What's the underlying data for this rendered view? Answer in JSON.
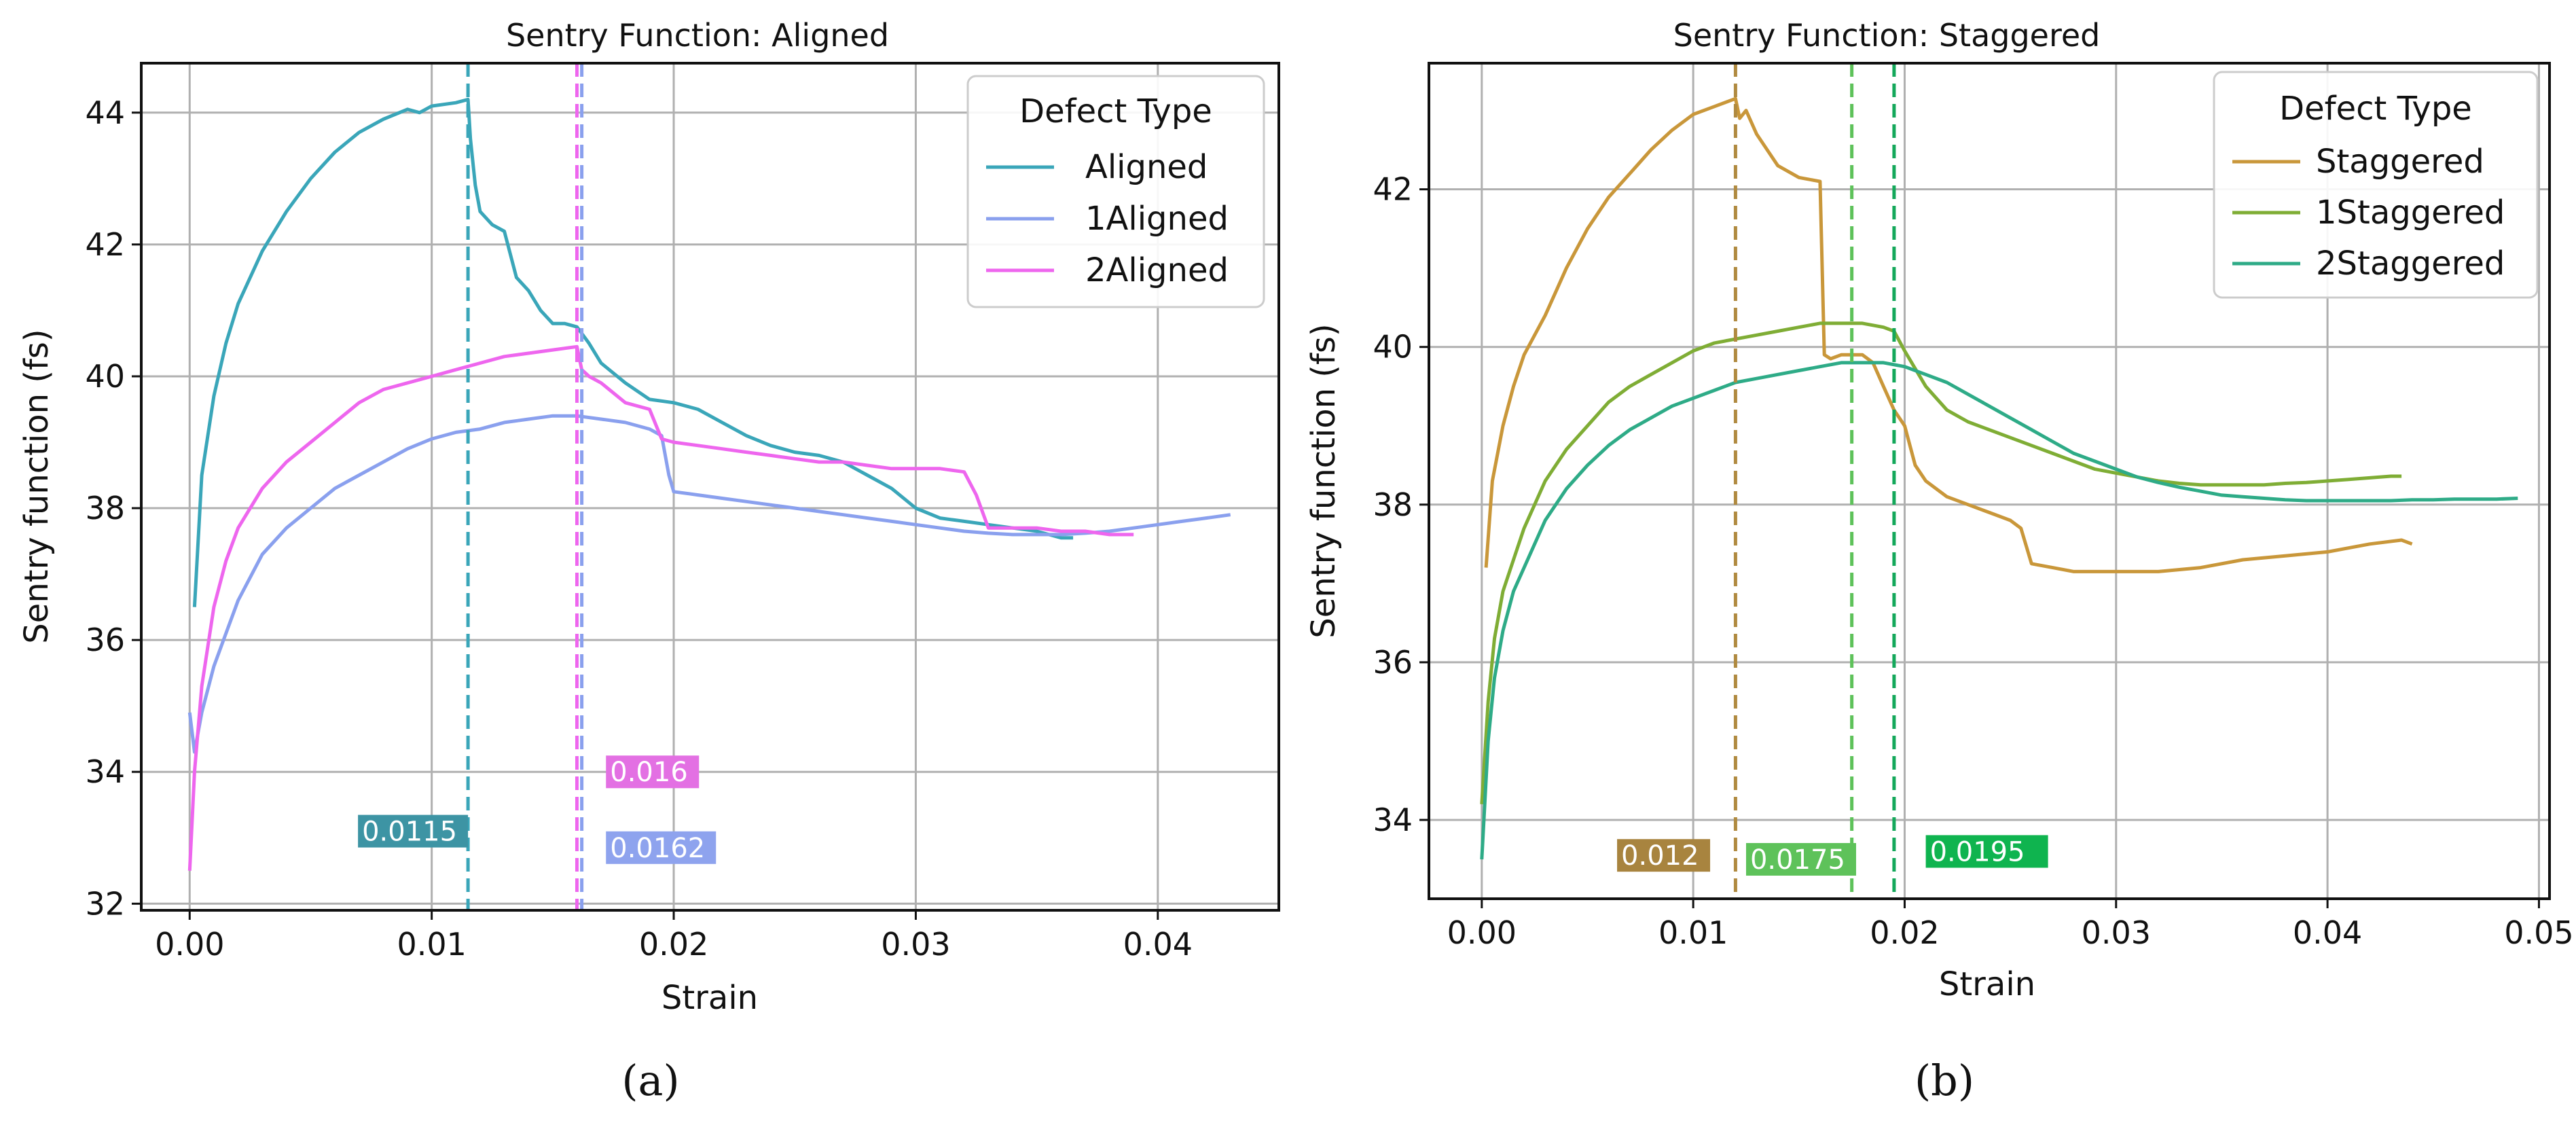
{
  "chart_data": [
    {
      "id": "a",
      "type": "line",
      "title": "Sentry Function: Aligned",
      "xlabel": "Strain",
      "ylabel": "Sentry function (fs)",
      "xlim": [
        -0.002,
        0.045
      ],
      "ylim": [
        31.9,
        44.75
      ],
      "xticks": [
        0.0,
        0.01,
        0.02,
        0.03,
        0.04
      ],
      "xtick_labels": [
        "0.00",
        "0.01",
        "0.02",
        "0.03",
        "0.04"
      ],
      "yticks": [
        32,
        34,
        36,
        38,
        40,
        42,
        44
      ],
      "ytick_labels": [
        "32",
        "34",
        "36",
        "38",
        "40",
        "42",
        "44"
      ],
      "grid": true,
      "legend": {
        "title": "Defect Type",
        "placement": "top-right"
      },
      "series": [
        {
          "name": "Aligned",
          "color": "#3aa6b9",
          "x": [
            0.0002,
            0.0005,
            0.001,
            0.0015,
            0.002,
            0.003,
            0.004,
            0.005,
            0.006,
            0.007,
            0.008,
            0.009,
            0.0095,
            0.01,
            0.011,
            0.0115,
            0.0116,
            0.0118,
            0.012,
            0.0125,
            0.013,
            0.0135,
            0.014,
            0.0145,
            0.015,
            0.0155,
            0.016,
            0.0165,
            0.017,
            0.018,
            0.019,
            0.02,
            0.021,
            0.022,
            0.023,
            0.024,
            0.025,
            0.026,
            0.027,
            0.028,
            0.029,
            0.03,
            0.031,
            0.032,
            0.033,
            0.034,
            0.035,
            0.036,
            0.0365
          ],
          "y": [
            36.5,
            38.5,
            39.7,
            40.5,
            41.1,
            41.9,
            42.5,
            43.0,
            43.4,
            43.7,
            43.9,
            44.05,
            44.0,
            44.1,
            44.15,
            44.2,
            43.6,
            42.9,
            42.5,
            42.3,
            42.2,
            41.5,
            41.3,
            41.0,
            40.8,
            40.8,
            40.75,
            40.5,
            40.2,
            39.9,
            39.65,
            39.6,
            39.5,
            39.3,
            39.1,
            38.95,
            38.85,
            38.8,
            38.7,
            38.5,
            38.3,
            38.0,
            37.85,
            37.8,
            37.75,
            37.7,
            37.65,
            37.55,
            37.55
          ]
        },
        {
          "name": "1Aligned",
          "color": "#8aa0ee",
          "x": [
            0.0,
            0.0002,
            0.0005,
            0.001,
            0.0015,
            0.002,
            0.003,
            0.004,
            0.005,
            0.006,
            0.007,
            0.008,
            0.009,
            0.01,
            0.011,
            0.012,
            0.013,
            0.014,
            0.015,
            0.016,
            0.017,
            0.018,
            0.019,
            0.0195,
            0.0198,
            0.02,
            0.021,
            0.022,
            0.023,
            0.024,
            0.025,
            0.026,
            0.027,
            0.028,
            0.029,
            0.03,
            0.031,
            0.032,
            0.033,
            0.034,
            0.035,
            0.036,
            0.037,
            0.038,
            0.039,
            0.04,
            0.041,
            0.042,
            0.043
          ],
          "y": [
            34.9,
            34.3,
            34.9,
            35.6,
            36.1,
            36.6,
            37.3,
            37.7,
            38.0,
            38.3,
            38.5,
            38.7,
            38.9,
            39.05,
            39.15,
            39.2,
            39.3,
            39.35,
            39.4,
            39.4,
            39.35,
            39.3,
            39.2,
            39.1,
            38.5,
            38.25,
            38.2,
            38.15,
            38.1,
            38.05,
            38.0,
            37.95,
            37.9,
            37.85,
            37.8,
            37.75,
            37.7,
            37.65,
            37.62,
            37.6,
            37.6,
            37.6,
            37.62,
            37.65,
            37.7,
            37.75,
            37.8,
            37.85,
            37.9
          ]
        },
        {
          "name": "2Aligned",
          "color": "#ee66ee",
          "x": [
            0.0,
            0.0002,
            0.0005,
            0.001,
            0.0015,
            0.002,
            0.003,
            0.004,
            0.005,
            0.006,
            0.007,
            0.008,
            0.009,
            0.01,
            0.011,
            0.012,
            0.013,
            0.014,
            0.015,
            0.016,
            0.0162,
            0.0165,
            0.017,
            0.018,
            0.019,
            0.0195,
            0.02,
            0.021,
            0.022,
            0.023,
            0.024,
            0.025,
            0.026,
            0.027,
            0.028,
            0.029,
            0.03,
            0.031,
            0.032,
            0.0325,
            0.033,
            0.034,
            0.035,
            0.036,
            0.037,
            0.038,
            0.039
          ],
          "y": [
            32.5,
            34.0,
            35.3,
            36.5,
            37.2,
            37.7,
            38.3,
            38.7,
            39.0,
            39.3,
            39.6,
            39.8,
            39.9,
            40.0,
            40.1,
            40.2,
            40.3,
            40.35,
            40.4,
            40.45,
            40.1,
            40.0,
            39.9,
            39.6,
            39.5,
            39.05,
            39.0,
            38.95,
            38.9,
            38.85,
            38.8,
            38.75,
            38.7,
            38.7,
            38.65,
            38.6,
            38.6,
            38.6,
            38.55,
            38.2,
            37.7,
            37.7,
            37.7,
            37.65,
            37.65,
            37.6,
            37.6
          ]
        }
      ],
      "vlines": [
        {
          "x": 0.0115,
          "color": "#3aa6b9",
          "label": "0.0115",
          "label_x": 0.0115,
          "label_y": 33.1,
          "label_anchor": "end",
          "label_bg": "#3d94a4"
        },
        {
          "x": 0.016,
          "color": "#ee66ee",
          "label": "0.016",
          "label_x": 0.0172,
          "label_y": 34.0,
          "label_anchor": "start",
          "label_bg": "#e370e3"
        },
        {
          "x": 0.0162,
          "color": "#8aa0ee",
          "label": "0.0162",
          "label_x": 0.0172,
          "label_y": 32.85,
          "label_anchor": "start",
          "label_bg": "#8ea3ee"
        }
      ],
      "caption": "(a)"
    },
    {
      "id": "b",
      "type": "line",
      "title": "Sentry Function: Staggered",
      "xlabel": "Strain",
      "ylabel": "Sentry function (fs)",
      "xlim": [
        -0.0025,
        0.0505
      ],
      "ylim": [
        33.0,
        43.6
      ],
      "xticks": [
        0.0,
        0.01,
        0.02,
        0.03,
        0.04,
        0.05
      ],
      "xtick_labels": [
        "0.00",
        "0.01",
        "0.02",
        "0.03",
        "0.04",
        "0.05"
      ],
      "yticks": [
        34,
        36,
        38,
        40,
        42
      ],
      "ytick_labels": [
        "34",
        "36",
        "38",
        "40",
        "42"
      ],
      "grid": true,
      "legend": {
        "title": "Defect Type",
        "placement": "top-right"
      },
      "series": [
        {
          "name": "Staggered",
          "color": "#c9973a",
          "x": [
            0.0002,
            0.0005,
            0.001,
            0.0015,
            0.002,
            0.003,
            0.004,
            0.005,
            0.006,
            0.007,
            0.008,
            0.009,
            0.01,
            0.011,
            0.012,
            0.0122,
            0.0125,
            0.013,
            0.0135,
            0.014,
            0.015,
            0.016,
            0.0162,
            0.0165,
            0.017,
            0.018,
            0.0185,
            0.019,
            0.0195,
            0.02,
            0.0205,
            0.021,
            0.022,
            0.023,
            0.024,
            0.025,
            0.0255,
            0.026,
            0.027,
            0.028,
            0.029,
            0.03,
            0.032,
            0.034,
            0.036,
            0.038,
            0.04,
            0.042,
            0.0435,
            0.044
          ],
          "y": [
            37.2,
            38.3,
            39.0,
            39.5,
            39.9,
            40.4,
            41.0,
            41.5,
            41.9,
            42.2,
            42.5,
            42.75,
            42.95,
            43.05,
            43.15,
            42.9,
            43.0,
            42.7,
            42.5,
            42.3,
            42.15,
            42.1,
            39.9,
            39.85,
            39.9,
            39.9,
            39.8,
            39.5,
            39.2,
            39.0,
            38.5,
            38.3,
            38.1,
            38.0,
            37.9,
            37.8,
            37.7,
            37.25,
            37.2,
            37.15,
            37.15,
            37.15,
            37.15,
            37.2,
            37.3,
            37.35,
            37.4,
            37.5,
            37.55,
            37.5
          ]
        },
        {
          "name": "1Staggered",
          "color": "#7fad35",
          "x": [
            0.0,
            0.0003,
            0.0006,
            0.001,
            0.0015,
            0.002,
            0.003,
            0.004,
            0.005,
            0.006,
            0.007,
            0.008,
            0.009,
            0.01,
            0.011,
            0.012,
            0.013,
            0.014,
            0.015,
            0.016,
            0.017,
            0.018,
            0.019,
            0.0195,
            0.02,
            0.021,
            0.022,
            0.023,
            0.024,
            0.025,
            0.026,
            0.027,
            0.028,
            0.029,
            0.03,
            0.031,
            0.032,
            0.033,
            0.034,
            0.035,
            0.036,
            0.037,
            0.038,
            0.039,
            0.04,
            0.041,
            0.042,
            0.043,
            0.0435
          ],
          "y": [
            34.2,
            35.5,
            36.3,
            36.9,
            37.3,
            37.7,
            38.3,
            38.7,
            39.0,
            39.3,
            39.5,
            39.65,
            39.8,
            39.95,
            40.05,
            40.1,
            40.15,
            40.2,
            40.25,
            40.3,
            40.3,
            40.3,
            40.25,
            40.2,
            39.95,
            39.5,
            39.2,
            39.05,
            38.95,
            38.85,
            38.75,
            38.65,
            38.55,
            38.45,
            38.4,
            38.35,
            38.3,
            38.27,
            38.25,
            38.25,
            38.25,
            38.25,
            38.27,
            38.28,
            38.3,
            38.32,
            38.34,
            38.36,
            38.36
          ]
        },
        {
          "name": "2Staggered",
          "color": "#2eab87",
          "x": [
            0.0,
            0.0003,
            0.0006,
            0.001,
            0.0015,
            0.002,
            0.003,
            0.004,
            0.005,
            0.006,
            0.007,
            0.008,
            0.009,
            0.01,
            0.011,
            0.012,
            0.013,
            0.014,
            0.015,
            0.016,
            0.017,
            0.018,
            0.019,
            0.02,
            0.021,
            0.022,
            0.023,
            0.024,
            0.025,
            0.026,
            0.027,
            0.028,
            0.029,
            0.03,
            0.031,
            0.032,
            0.033,
            0.034,
            0.035,
            0.036,
            0.037,
            0.038,
            0.039,
            0.04,
            0.041,
            0.042,
            0.043,
            0.044,
            0.045,
            0.046,
            0.047,
            0.048,
            0.049
          ],
          "y": [
            33.5,
            35.0,
            35.8,
            36.4,
            36.9,
            37.2,
            37.8,
            38.2,
            38.5,
            38.75,
            38.95,
            39.1,
            39.25,
            39.35,
            39.45,
            39.55,
            39.6,
            39.65,
            39.7,
            39.75,
            39.8,
            39.8,
            39.8,
            39.75,
            39.65,
            39.55,
            39.4,
            39.25,
            39.1,
            38.95,
            38.8,
            38.65,
            38.55,
            38.45,
            38.35,
            38.28,
            38.22,
            38.17,
            38.12,
            38.1,
            38.08,
            38.06,
            38.05,
            38.05,
            38.05,
            38.05,
            38.05,
            38.06,
            38.06,
            38.07,
            38.07,
            38.07,
            38.08
          ]
        }
      ],
      "vlines": [
        {
          "x": 0.012,
          "color": "#b08a40",
          "label": "0.012",
          "label_x": 0.0108,
          "label_y": 33.55,
          "label_anchor": "end",
          "label_bg": "#a8843f"
        },
        {
          "x": 0.0175,
          "color": "#5ec25a",
          "label": "0.0175",
          "label_x": 0.0125,
          "label_y": 33.5,
          "label_anchor": "start",
          "label_bg": "#5ec25a"
        },
        {
          "x": 0.0195,
          "color": "#14a85b",
          "label": "0.0195",
          "label_x": 0.021,
          "label_y": 33.6,
          "label_anchor": "start",
          "label_bg": "#0fb44f",
          "label_width": 180
        }
      ],
      "caption": "(b)"
    }
  ]
}
